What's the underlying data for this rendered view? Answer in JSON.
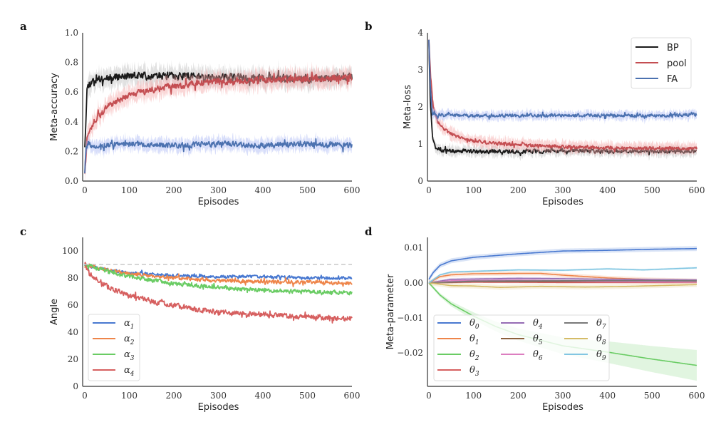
{
  "chart_data": [
    {
      "panel": "a",
      "type": "line",
      "xlabel": "Episodes",
      "ylabel": "Meta-accuracy",
      "xlim": [
        0,
        600
      ],
      "ylim": [
        0,
        1.0
      ],
      "xticks": [
        "0",
        "100",
        "200",
        "300",
        "400",
        "500",
        "600"
      ],
      "yticks": [
        "0.0",
        "0.2",
        "0.4",
        "0.6",
        "0.8",
        "1.0"
      ],
      "grid": false,
      "legend": "none",
      "series": [
        {
          "name": "BP",
          "color": "#1a1a1a",
          "band_color": "#bdbdbd",
          "noise": 0.035,
          "band": 0.07,
          "x": [
            0,
            5,
            10,
            20,
            50,
            100,
            200,
            300,
            400,
            500,
            600
          ],
          "y": [
            0.24,
            0.62,
            0.66,
            0.68,
            0.7,
            0.71,
            0.71,
            0.7,
            0.69,
            0.69,
            0.7
          ]
        },
        {
          "name": "pool",
          "color": "#c44e52",
          "band_color": "#f4a6a6",
          "noise": 0.03,
          "band": 0.07,
          "x": [
            0,
            5,
            10,
            20,
            50,
            100,
            150,
            200,
            250,
            300,
            400,
            500,
            600
          ],
          "y": [
            0.06,
            0.28,
            0.33,
            0.4,
            0.5,
            0.58,
            0.62,
            0.64,
            0.66,
            0.67,
            0.68,
            0.69,
            0.7
          ]
        },
        {
          "name": "FA",
          "color": "#4c72b0",
          "band_color": "#a9b5f5",
          "noise": 0.025,
          "band": 0.05,
          "x": [
            0,
            3,
            8,
            20,
            100,
            200,
            300,
            400,
            500,
            600
          ],
          "y": [
            0.06,
            0.22,
            0.25,
            0.24,
            0.25,
            0.24,
            0.25,
            0.24,
            0.25,
            0.24
          ]
        }
      ]
    },
    {
      "panel": "b",
      "type": "line",
      "xlabel": "Episodes",
      "ylabel": "Meta-loss",
      "xlim": [
        0,
        600
      ],
      "ylim": [
        0,
        4
      ],
      "xticks": [
        "0",
        "100",
        "200",
        "300",
        "400",
        "500",
        "600"
      ],
      "yticks": [
        "0",
        "1",
        "2",
        "3",
        "4"
      ],
      "grid": false,
      "legend": "top-right",
      "series": [
        {
          "name": "BP",
          "color": "#1a1a1a",
          "band_color": "#bdbdbd",
          "noise": 0.07,
          "band": 0.15,
          "x": [
            0,
            3,
            8,
            15,
            30,
            100,
            200,
            300,
            400,
            500,
            600
          ],
          "y": [
            3.8,
            2.2,
            1.2,
            0.9,
            0.82,
            0.8,
            0.8,
            0.82,
            0.8,
            0.8,
            0.8
          ]
        },
        {
          "name": "pool",
          "color": "#c44e52",
          "band_color": "#f4a6a6",
          "noise": 0.06,
          "band": 0.18,
          "x": [
            0,
            4,
            10,
            20,
            40,
            60,
            100,
            150,
            200,
            300,
            400,
            500,
            600
          ],
          "y": [
            3.8,
            2.8,
            2.0,
            1.6,
            1.35,
            1.2,
            1.08,
            1.02,
            0.98,
            0.93,
            0.9,
            0.88,
            0.88
          ]
        },
        {
          "name": "FA",
          "color": "#4c72b0",
          "band_color": "#a9b5f5",
          "noise": 0.06,
          "band": 0.14,
          "x": [
            0,
            3,
            8,
            15,
            30,
            100,
            200,
            300,
            400,
            500,
            600
          ],
          "y": [
            3.8,
            2.6,
            1.8,
            1.8,
            1.78,
            1.76,
            1.77,
            1.77,
            1.77,
            1.76,
            1.8
          ]
        }
      ]
    },
    {
      "panel": "c",
      "type": "line",
      "xlabel": "Episodes",
      "ylabel": "Angle",
      "xlim": [
        0,
        600
      ],
      "ylim": [
        0,
        110
      ],
      "xticks": [
        "0",
        "100",
        "200",
        "300",
        "400",
        "500",
        "600"
      ],
      "yticks": [
        "0",
        "20",
        "40",
        "60",
        "80",
        "100"
      ],
      "grid": false,
      "legend": "lower-left",
      "reference_line": {
        "y": 90,
        "style": "dashed",
        "color": "#c8c8c8"
      },
      "series": [
        {
          "name": "α1",
          "sub": "1",
          "color": "#4878d0",
          "noise": 1.6,
          "x": [
            0,
            50,
            100,
            200,
            300,
            400,
            500,
            600
          ],
          "y": [
            90,
            86,
            84,
            82,
            81,
            81,
            80,
            80
          ]
        },
        {
          "name": "α2",
          "sub": "2",
          "color": "#ee854a",
          "noise": 1.8,
          "x": [
            0,
            50,
            100,
            200,
            300,
            400,
            500,
            600
          ],
          "y": [
            90,
            86,
            83,
            80,
            78,
            77,
            77,
            76
          ]
        },
        {
          "name": "α3",
          "sub": "3",
          "color": "#6acc64",
          "noise": 2.0,
          "x": [
            0,
            50,
            100,
            200,
            300,
            400,
            500,
            600
          ],
          "y": [
            90,
            85,
            81,
            76,
            73,
            71,
            70,
            69
          ]
        },
        {
          "name": "α4",
          "sub": "4",
          "color": "#d65f5f",
          "noise": 2.6,
          "x": [
            0,
            10,
            50,
            100,
            150,
            200,
            250,
            300,
            400,
            500,
            600
          ],
          "y": [
            92,
            83,
            74,
            67,
            63,
            60,
            57,
            55,
            53,
            51,
            50
          ]
        }
      ]
    },
    {
      "panel": "d",
      "type": "line",
      "xlabel": "Episodes",
      "ylabel": "Meta-parameter",
      "xlim": [
        0,
        600
      ],
      "ylim": [
        -0.0296,
        0.013
      ],
      "xticks": [
        "0",
        "100",
        "200",
        "300",
        "400",
        "500",
        "600"
      ],
      "yticks": [
        "−0.02",
        "−0.01",
        "0.00",
        "0.01"
      ],
      "ytick_values": [
        -0.02,
        -0.01,
        0.0,
        0.01
      ],
      "grid": false,
      "legend": "lower-left",
      "legend_columns": 3,
      "series": [
        {
          "name": "θ0",
          "sub": "0",
          "color": "#4878d0",
          "band": 0.0007,
          "x": [
            0,
            10,
            25,
            50,
            100,
            200,
            300,
            400,
            500,
            600
          ],
          "y": [
            0.001,
            0.003,
            0.005,
            0.0063,
            0.0073,
            0.0083,
            0.0091,
            0.0093,
            0.0096,
            0.0098
          ]
        },
        {
          "name": "θ1",
          "sub": "1",
          "color": "#ee854a",
          "band": 0.0006,
          "x": [
            0,
            25,
            50,
            100,
            200,
            250,
            300,
            400,
            500,
            600
          ],
          "y": [
            0.0,
            0.0018,
            0.0023,
            0.0026,
            0.0027,
            0.0027,
            0.0022,
            0.0014,
            0.0009,
            0.0006
          ]
        },
        {
          "name": "θ2",
          "sub": "2",
          "color": "#6acc64",
          "band": 0.0004,
          "band_growth": 0.004,
          "x": [
            0,
            25,
            50,
            100,
            150,
            200,
            300,
            400,
            500,
            600
          ],
          "y": [
            0.0,
            -0.0035,
            -0.006,
            -0.0095,
            -0.0125,
            -0.0148,
            -0.018,
            -0.0198,
            -0.0218,
            -0.0236
          ]
        },
        {
          "name": "θ3",
          "sub": "3",
          "color": "#d65f5f",
          "band": 0.0003,
          "x": [
            0,
            100,
            300,
            600
          ],
          "y": [
            0.0,
            0.0002,
            0.0001,
            0.0001
          ]
        },
        {
          "name": "θ4",
          "sub": "4",
          "color": "#956cb4",
          "band": 0.0004,
          "x": [
            0,
            50,
            100,
            200,
            300,
            400,
            600
          ],
          "y": [
            0.0,
            0.001,
            0.0011,
            0.0013,
            0.0012,
            0.001,
            0.0008
          ]
        },
        {
          "name": "θ5",
          "sub": "5",
          "color": "#8c613c",
          "band": 0.0003,
          "x": [
            0,
            100,
            300,
            600
          ],
          "y": [
            0.0,
            0.0004,
            0.0004,
            0.0005
          ]
        },
        {
          "name": "θ6",
          "sub": "6",
          "color": "#dc7ec0",
          "band": 0.0003,
          "x": [
            0,
            50,
            200,
            400,
            600
          ],
          "y": [
            0.0,
            0.0006,
            0.0008,
            0.0004,
            0.0002
          ]
        },
        {
          "name": "θ7",
          "sub": "7",
          "color": "#797979",
          "band": 0.0003,
          "x": [
            0,
            100,
            300,
            600
          ],
          "y": [
            0.0,
            0.0005,
            0.0006,
            0.0006
          ]
        },
        {
          "name": "θ8",
          "sub": "8",
          "color": "#d5bb67",
          "band": 0.0007,
          "x": [
            0,
            50,
            100,
            160,
            250,
            350,
            450,
            600
          ],
          "y": [
            0.0,
            -0.0008,
            -0.0009,
            -0.0013,
            -0.001,
            -0.0012,
            -0.001,
            -0.0005
          ]
        },
        {
          "name": "θ9",
          "sub": "9",
          "color": "#82c6e2",
          "band": 0.0003,
          "x": [
            0,
            25,
            50,
            100,
            200,
            300,
            400,
            480,
            600
          ],
          "y": [
            0.0,
            0.0023,
            0.0031,
            0.0033,
            0.0037,
            0.0036,
            0.004,
            0.0037,
            0.0043
          ]
        }
      ]
    }
  ],
  "panel_labels": [
    "a",
    "b",
    "c",
    "d"
  ]
}
